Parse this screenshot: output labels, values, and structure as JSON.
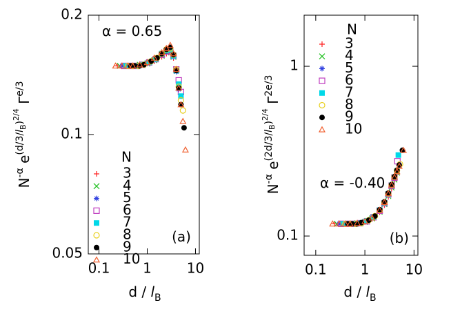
{
  "chart_data": [
    {
      "type": "scatter",
      "xlabel": [
        "d / ",
        "l",
        "B"
      ],
      "ylabel": [
        "N",
        "-α",
        " e",
        "(d/3/",
        "l",
        "B",
        ")",
        "2/4",
        " Γ",
        "e/3"
      ],
      "xscale": "log",
      "yscale": "log",
      "xlim": [
        0.06,
        12
      ],
      "ylim": [
        0.05,
        0.2
      ],
      "xticks": [
        0.1,
        1,
        10
      ],
      "yticks": [
        0.05,
        0.1,
        0.2
      ],
      "annotations": [
        "α = 0.65",
        "(a)"
      ],
      "legend_title": "N",
      "series": [
        {
          "name": "3",
          "color": "#ff2020",
          "marker": "plus",
          "x": [
            0.24,
            0.35,
            0.5,
            0.7,
            1,
            1.4,
            2,
            2.5,
            3,
            3.5,
            4
          ],
          "values": [
            0.149,
            0.149,
            0.149,
            0.15,
            0.151,
            0.153,
            0.157,
            0.16,
            0.161,
            0.156,
            0.146
          ]
        },
        {
          "name": "4",
          "color": "#20c020",
          "marker": "cross",
          "x": [
            0.27,
            0.35,
            0.5,
            0.7,
            1,
            1.4,
            2,
            2.5,
            3,
            3.5,
            4,
            4.5
          ],
          "values": [
            0.149,
            0.149,
            0.149,
            0.15,
            0.151,
            0.154,
            0.158,
            0.161,
            0.162,
            0.157,
            0.145,
            0.132
          ]
        },
        {
          "name": "5",
          "color": "#3040e0",
          "marker": "star",
          "x": [
            0.3,
            0.4,
            0.5,
            0.7,
            1,
            1.4,
            2,
            2.5,
            3,
            3.5,
            4,
            4.5
          ],
          "values": [
            0.149,
            0.149,
            0.149,
            0.15,
            0.152,
            0.154,
            0.159,
            0.162,
            0.163,
            0.157,
            0.144,
            0.13
          ]
        },
        {
          "name": "6",
          "color": "#c040c0",
          "marker": "square-open",
          "x": [
            0.33,
            0.45,
            0.6,
            0.8,
            1.1,
            1.5,
            2,
            2.5,
            3,
            3.5,
            4,
            4.5,
            5
          ],
          "values": [
            0.149,
            0.149,
            0.149,
            0.15,
            0.152,
            0.155,
            0.159,
            0.162,
            0.163,
            0.158,
            0.146,
            0.137,
            0.128
          ]
        },
        {
          "name": "7",
          "color": "#00d8e8",
          "marker": "square",
          "x": [
            0.36,
            0.45,
            0.6,
            0.8,
            1.1,
            1.5,
            2,
            2.5,
            3,
            3.5,
            4,
            4.5,
            5
          ],
          "values": [
            0.149,
            0.149,
            0.149,
            0.15,
            0.152,
            0.155,
            0.16,
            0.163,
            0.164,
            0.158,
            0.145,
            0.134,
            0.125
          ]
        },
        {
          "name": "8",
          "color": "#e8d020",
          "marker": "circle-open",
          "x": [
            0.4,
            0.5,
            0.65,
            0.85,
            1.2,
            1.6,
            2,
            2.5,
            3,
            3.5,
            4,
            4.5,
            5,
            5.5
          ],
          "values": [
            0.149,
            0.149,
            0.149,
            0.15,
            0.153,
            0.156,
            0.16,
            0.164,
            0.165,
            0.159,
            0.146,
            0.132,
            0.122,
            0.115
          ]
        },
        {
          "name": "9",
          "color": "#000000",
          "marker": "circle",
          "x": [
            0.45,
            0.55,
            0.7,
            0.85,
            1.2,
            1.6,
            2,
            2.5,
            3,
            3.5,
            4,
            4.5,
            5,
            5.8
          ],
          "values": [
            0.149,
            0.149,
            0.149,
            0.15,
            0.153,
            0.156,
            0.16,
            0.164,
            0.166,
            0.159,
            0.145,
            0.131,
            0.119,
            0.104
          ]
        },
        {
          "name": "10",
          "color": "#f06030",
          "marker": "triangle-open",
          "x": [
            0.22,
            0.3,
            0.4,
            0.5,
            0.7,
            1,
            1.4,
            2,
            2.5,
            3,
            3.5,
            4,
            4.5,
            5,
            5.5,
            6.2
          ],
          "values": [
            0.149,
            0.149,
            0.149,
            0.149,
            0.15,
            0.152,
            0.156,
            0.161,
            0.165,
            0.168,
            0.16,
            0.146,
            0.131,
            0.119,
            0.108,
            0.0915
          ]
        }
      ]
    },
    {
      "type": "scatter",
      "xlabel": [
        "d / ",
        "l",
        "B"
      ],
      "ylabel": [
        "N",
        "-α",
        " e",
        "(2d/3/",
        "l",
        "B",
        ")",
        "2/4",
        " Γ",
        "2e/3"
      ],
      "xscale": "log",
      "yscale": "log",
      "xlim": [
        0.058,
        12
      ],
      "ylim": [
        0.077,
        2.0
      ],
      "xticks": [
        0.1,
        1,
        10
      ],
      "yticks": [
        0.1,
        1
      ],
      "annotations": [
        "α = -0.40",
        "(b)"
      ],
      "legend_title": "N",
      "series": [
        {
          "name": "3",
          "color": "#ff2020",
          "marker": "plus",
          "x": [
            0.24,
            0.35,
            0.5,
            0.7,
            1,
            1.4,
            2,
            2.5,
            3,
            3.5,
            4,
            4.5
          ],
          "values": [
            0.118,
            0.118,
            0.118,
            0.119,
            0.121,
            0.126,
            0.138,
            0.152,
            0.17,
            0.19,
            0.212,
            0.232
          ]
        },
        {
          "name": "4",
          "color": "#20c020",
          "marker": "cross",
          "x": [
            0.27,
            0.35,
            0.5,
            0.7,
            1,
            1.4,
            2,
            2.5,
            3,
            3.5,
            4,
            4.5
          ],
          "values": [
            0.118,
            0.118,
            0.118,
            0.119,
            0.121,
            0.127,
            0.139,
            0.154,
            0.172,
            0.193,
            0.215,
            0.236
          ]
        },
        {
          "name": "5",
          "color": "#3040e0",
          "marker": "star",
          "x": [
            0.3,
            0.4,
            0.5,
            0.7,
            1,
            1.4,
            2,
            2.5,
            3,
            3.5,
            4,
            4.5
          ],
          "values": [
            0.118,
            0.118,
            0.118,
            0.119,
            0.122,
            0.127,
            0.14,
            0.155,
            0.174,
            0.196,
            0.218,
            0.24
          ]
        },
        {
          "name": "6",
          "color": "#c040c0",
          "marker": "square-open",
          "x": [
            0.33,
            0.45,
            0.6,
            0.8,
            1.1,
            1.5,
            2,
            2.5,
            3,
            3.5,
            4,
            4.6
          ],
          "values": [
            0.118,
            0.118,
            0.118,
            0.119,
            0.122,
            0.129,
            0.141,
            0.156,
            0.176,
            0.198,
            0.221,
            0.276
          ]
        },
        {
          "name": "7",
          "color": "#00d8e8",
          "marker": "square",
          "x": [
            0.36,
            0.45,
            0.6,
            0.8,
            1.1,
            1.5,
            2,
            2.5,
            3,
            3.5,
            4,
            4.5,
            4.8
          ],
          "values": [
            0.118,
            0.118,
            0.118,
            0.119,
            0.123,
            0.129,
            0.142,
            0.157,
            0.177,
            0.199,
            0.222,
            0.242,
            0.3
          ]
        },
        {
          "name": "8",
          "color": "#e8d020",
          "marker": "circle-open",
          "x": [
            0.4,
            0.5,
            0.65,
            0.85,
            1.2,
            1.6,
            2,
            2.5,
            3,
            3.5,
            4,
            4.5,
            5.2
          ],
          "values": [
            0.118,
            0.118,
            0.118,
            0.119,
            0.124,
            0.131,
            0.142,
            0.158,
            0.178,
            0.2,
            0.223,
            0.243,
            0.265
          ]
        },
        {
          "name": "9",
          "color": "#000000",
          "marker": "circle",
          "x": [
            0.45,
            0.55,
            0.7,
            0.85,
            1.2,
            1.6,
            2,
            2.5,
            3,
            3.5,
            4,
            4.5,
            5,
            5.8
          ],
          "values": [
            0.118,
            0.118,
            0.118,
            0.12,
            0.124,
            0.131,
            0.143,
            0.159,
            0.179,
            0.201,
            0.224,
            0.244,
            0.262,
            0.32
          ]
        },
        {
          "name": "10",
          "color": "#f06030",
          "marker": "triangle-open",
          "x": [
            0.22,
            0.3,
            0.4,
            0.5,
            0.7,
            1,
            1.4,
            2,
            2.5,
            3,
            3.5,
            4,
            4.5,
            5,
            6.1
          ],
          "values": [
            0.118,
            0.118,
            0.118,
            0.118,
            0.119,
            0.122,
            0.128,
            0.142,
            0.158,
            0.178,
            0.2,
            0.222,
            0.24,
            0.258,
            0.32
          ]
        }
      ]
    }
  ]
}
